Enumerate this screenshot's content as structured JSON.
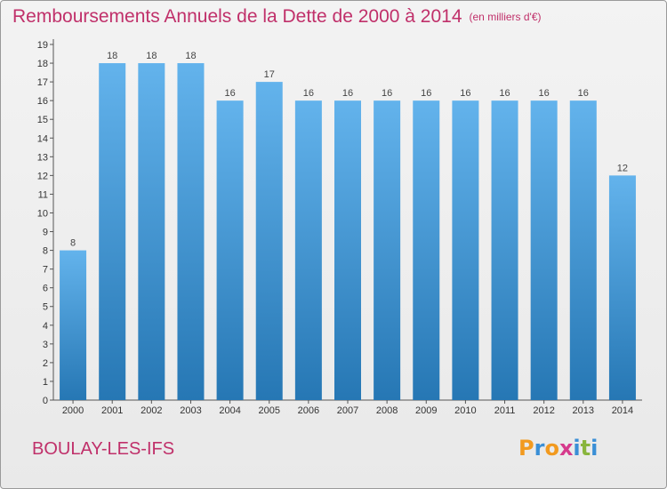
{
  "title": {
    "main": "Remboursements Annuels de la Dette de 2000 à 2014",
    "unit": "(en milliers d'€)"
  },
  "commune": "BOULAY-LES-IFS",
  "logo": {
    "text": "Proxiti",
    "letter_colors": [
      "#f29a1f",
      "#3a8fd6",
      "#f29a1f",
      "#d63a8c",
      "#3a8fd6",
      "#89b53d",
      "#3a8fd6"
    ]
  },
  "colors": {
    "bar_top": "#63b3ec",
    "bar_bottom": "#2677b4",
    "title": "#c0306a"
  },
  "chart_data": {
    "type": "bar",
    "title": "Remboursements Annuels de la Dette de 2000 à 2014",
    "categories": [
      "2000",
      "2001",
      "2002",
      "2003",
      "2004",
      "2005",
      "2006",
      "2007",
      "2008",
      "2009",
      "2010",
      "2011",
      "2012",
      "2013",
      "2014"
    ],
    "values": [
      8,
      18,
      18,
      18,
      16,
      17,
      16,
      16,
      16,
      16,
      16,
      16,
      16,
      16,
      12
    ],
    "ylim": [
      0,
      19
    ],
    "yticks": [
      0,
      1,
      2,
      3,
      4,
      5,
      6,
      7,
      8,
      9,
      10,
      11,
      12,
      13,
      14,
      15,
      16,
      17,
      18,
      19
    ],
    "grid": false,
    "xlabel": "",
    "ylabel": ""
  }
}
